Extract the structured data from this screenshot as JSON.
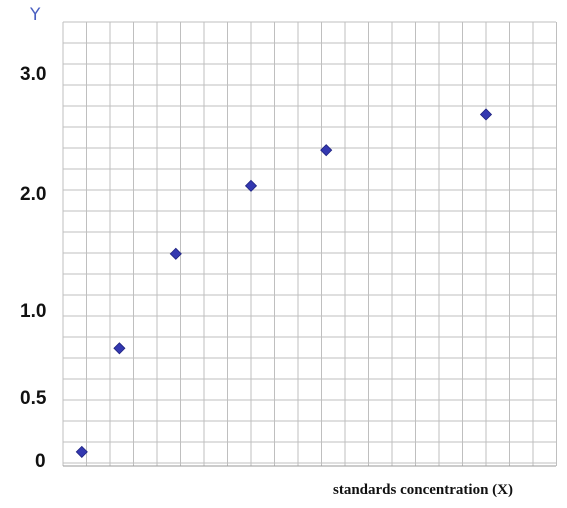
{
  "chart_data": {
    "type": "scatter",
    "title": "",
    "xlabel": "standards concentration (X)",
    "ylabel": "Y",
    "y_tick_labels": [
      "0",
      "0.5",
      "1.0",
      "2.0",
      "3.0"
    ],
    "grid": true,
    "x_ticks_shown": false,
    "points": [
      {
        "x": 0.2,
        "y": 0.05
      },
      {
        "x": 0.6,
        "y": 0.78
      },
      {
        "x": 1.2,
        "y": 1.48
      },
      {
        "x": 2.0,
        "y": 2.06
      },
      {
        "x": 2.8,
        "y": 2.36
      },
      {
        "x": 4.5,
        "y": 2.66
      }
    ],
    "marker": {
      "shape": "diamond",
      "color": "#3338b0",
      "outline": "#1f2380"
    },
    "gridline_color": "#bfbfbf"
  }
}
